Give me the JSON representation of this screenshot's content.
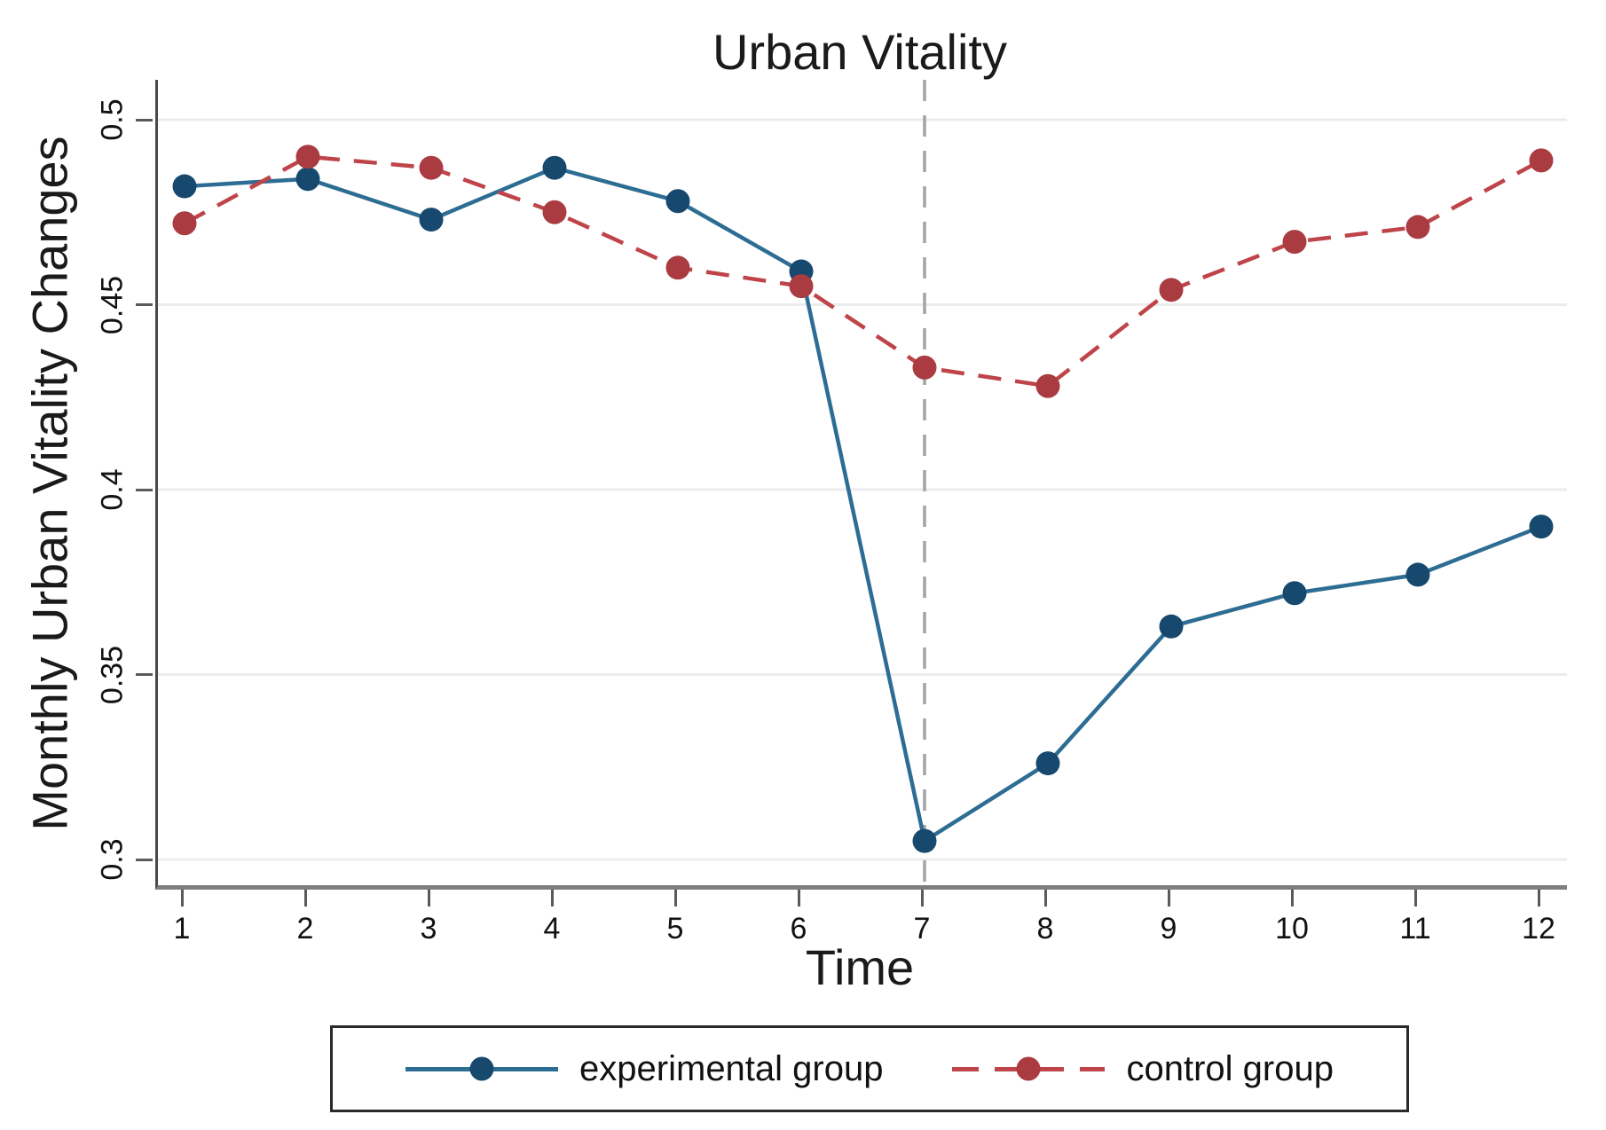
{
  "figure": {
    "title": "Urban Vitality",
    "x_axis_label": "Time",
    "y_axis_label": "Monthly Urban Vitality Changes"
  },
  "chart_data": {
    "type": "line",
    "title": "Urban Vitality",
    "xlabel": "Time",
    "ylabel": "Monthly Urban Vitality Changes",
    "x": [
      1,
      2,
      3,
      4,
      5,
      6,
      7,
      8,
      9,
      10,
      11,
      12
    ],
    "x_tick_labels": [
      "1",
      "2",
      "3",
      "4",
      "5",
      "6",
      "7",
      "8",
      "9",
      "10",
      "11",
      "12"
    ],
    "y_ticks": [
      0.3,
      0.35,
      0.4,
      0.45,
      0.5
    ],
    "y_tick_labels": [
      "0.3",
      "0.35",
      "0.4",
      "0.45",
      "0.5"
    ],
    "ylim": [
      0.3,
      0.5
    ],
    "grid": "horizontal",
    "gridline_color": "#ececec",
    "legend_position": "bottom",
    "series": [
      {
        "name": "experimental group",
        "style": "solid",
        "marker": "circle",
        "line_color": "#2e6d93",
        "marker_color": "#17496e",
        "values": [
          0.482,
          0.484,
          0.473,
          0.487,
          0.478,
          0.459,
          0.305,
          0.326,
          0.363,
          0.372,
          0.377,
          0.39
        ]
      },
      {
        "name": "control group",
        "style": "dashed",
        "marker": "circle",
        "line_color": "#bf4449",
        "marker_color": "#a93b41",
        "values": [
          0.472,
          0.49,
          0.487,
          0.475,
          0.46,
          0.455,
          0.433,
          0.428,
          0.454,
          0.467,
          0.471,
          0.489
        ]
      }
    ],
    "vline": {
      "x": 7,
      "style": "dashed",
      "color": "#a3a3a3"
    }
  }
}
